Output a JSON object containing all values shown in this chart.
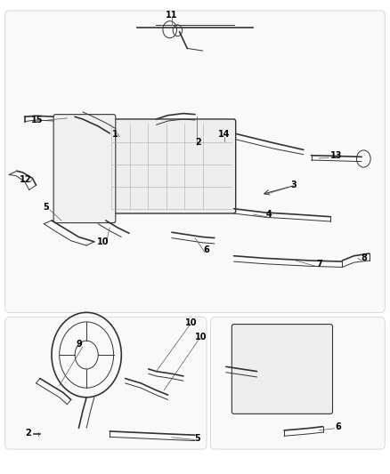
{
  "background_color": "#ffffff",
  "line_color": "#333333",
  "label_color": "#000000",
  "fig_width": 4.38,
  "fig_height": 5.33,
  "dpi": 100
}
